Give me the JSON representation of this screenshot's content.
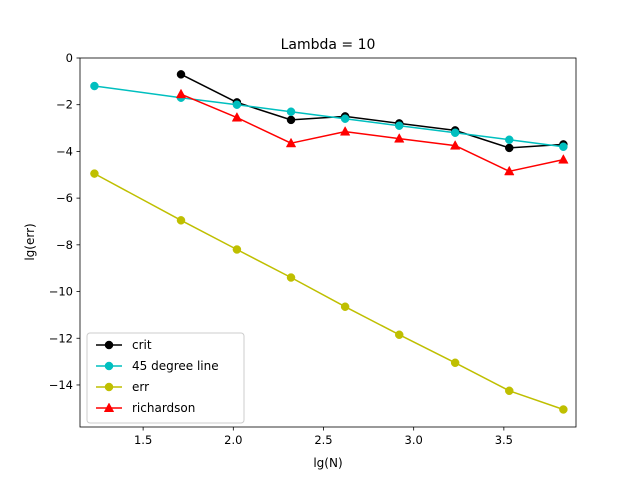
{
  "chart_data": {
    "type": "line",
    "title": "Lambda = 10",
    "xlabel": "lg(N)",
    "ylabel": "lg(err)",
    "xlim": [
      1.15,
      3.9
    ],
    "ylim": [
      -15.8,
      0
    ],
    "xticks": [
      1.5,
      2.0,
      2.5,
      3.0,
      3.5
    ],
    "xtick_labels": [
      "1.5",
      "2.0",
      "2.5",
      "3.0",
      "3.5"
    ],
    "yticks": [
      0,
      -2,
      -4,
      -6,
      -8,
      -10,
      -12,
      -14
    ],
    "ytick_labels": [
      "0",
      "−2",
      "−4",
      "−6",
      "−8",
      "−10",
      "−12",
      "−14"
    ],
    "grid": false,
    "legend_position": "lower-left",
    "series": [
      {
        "name": "crit",
        "color": "#000000",
        "marker": "circle",
        "x": [
          1.71,
          2.02,
          2.32,
          2.62,
          2.92,
          3.23,
          3.53,
          3.83
        ],
        "y": [
          -0.7,
          -1.9,
          -2.65,
          -2.5,
          -2.8,
          -3.1,
          -3.85,
          -3.7
        ]
      },
      {
        "name": "45 degree line",
        "color": "#00bfbf",
        "marker": "circle",
        "x": [
          1.23,
          1.71,
          2.02,
          2.32,
          2.62,
          2.92,
          3.23,
          3.53,
          3.83
        ],
        "y": [
          -1.2,
          -1.7,
          -2.0,
          -2.3,
          -2.6,
          -2.9,
          -3.2,
          -3.5,
          -3.8
        ]
      },
      {
        "name": "err",
        "color": "#bfbf00",
        "marker": "circle",
        "x": [
          1.23,
          1.71,
          2.02,
          2.32,
          2.62,
          2.92,
          3.23,
          3.53,
          3.83
        ],
        "y": [
          -4.95,
          -6.95,
          -8.2,
          -9.4,
          -10.65,
          -11.85,
          -13.05,
          -14.25,
          -15.05
        ]
      },
      {
        "name": "richardson",
        "color": "#ff0000",
        "marker": "triangle",
        "x": [
          1.71,
          2.02,
          2.32,
          2.62,
          2.92,
          3.23,
          3.53,
          3.83
        ],
        "y": [
          -1.55,
          -2.55,
          -3.65,
          -3.15,
          -3.45,
          -3.75,
          -4.85,
          -4.35
        ]
      }
    ]
  }
}
